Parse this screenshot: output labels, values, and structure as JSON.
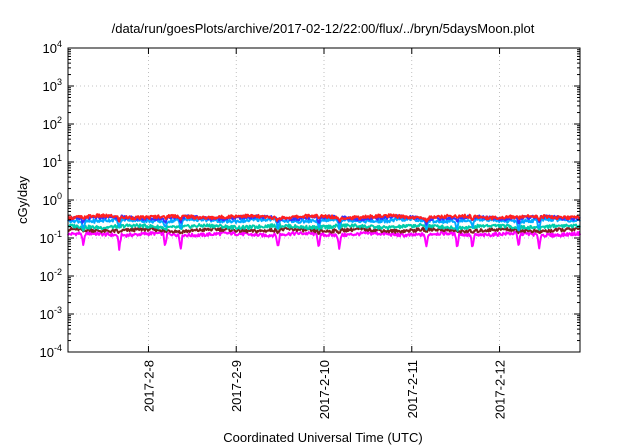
{
  "chart_data": {
    "type": "line",
    "title": "/data/run/goesPlots/archive/2017-02-12/22:00/flux/../bryn/5daysMoon.plot",
    "xlabel": "Coordinated Universal Time (UTC)",
    "ylabel": "cGy/day",
    "y_scale": "log",
    "ylim_exp": [
      -4,
      4
    ],
    "y_ticks": [
      {
        "base": "10",
        "exp": "-4"
      },
      {
        "base": "10",
        "exp": "-3"
      },
      {
        "base": "10",
        "exp": "-2"
      },
      {
        "base": "10",
        "exp": "-1"
      },
      {
        "base": "10",
        "exp": "0"
      },
      {
        "base": "10",
        "exp": "1"
      },
      {
        "base": "10",
        "exp": "2"
      },
      {
        "base": "10",
        "exp": "3"
      },
      {
        "base": "10",
        "exp": "4"
      }
    ],
    "xlim": [
      "2017-02-07T02:00",
      "2017-02-12T22:00"
    ],
    "x_ticks": [
      {
        "date": "2017-02-08T00:00",
        "label": "2017-2-8"
      },
      {
        "date": "2017-02-09T00:00",
        "label": "2017-2-9"
      },
      {
        "date": "2017-02-10T00:00",
        "label": "2017-2-10"
      },
      {
        "date": "2017-02-11T00:00",
        "label": "2017-2-11"
      },
      {
        "date": "2017-02-12T00:00",
        "label": "2017-2-12"
      }
    ],
    "grid": true,
    "series": [
      {
        "color": "#ff00ff",
        "level": 0.125,
        "dip_scale": 1.6
      },
      {
        "color": "#7f1f1f",
        "level": 0.16,
        "dip_scale": 0.25
      },
      {
        "color": "#00ccaa",
        "level": 0.2,
        "dip_scale": 0.3
      },
      {
        "color": "#00aaff",
        "level": 0.29,
        "dip_scale": 1.0
      },
      {
        "color": "#3333ff",
        "level": 0.34,
        "dip_scale": 0.6
      },
      {
        "color": "#ff2020",
        "level": 0.36,
        "dip_scale": 0.4
      }
    ]
  }
}
